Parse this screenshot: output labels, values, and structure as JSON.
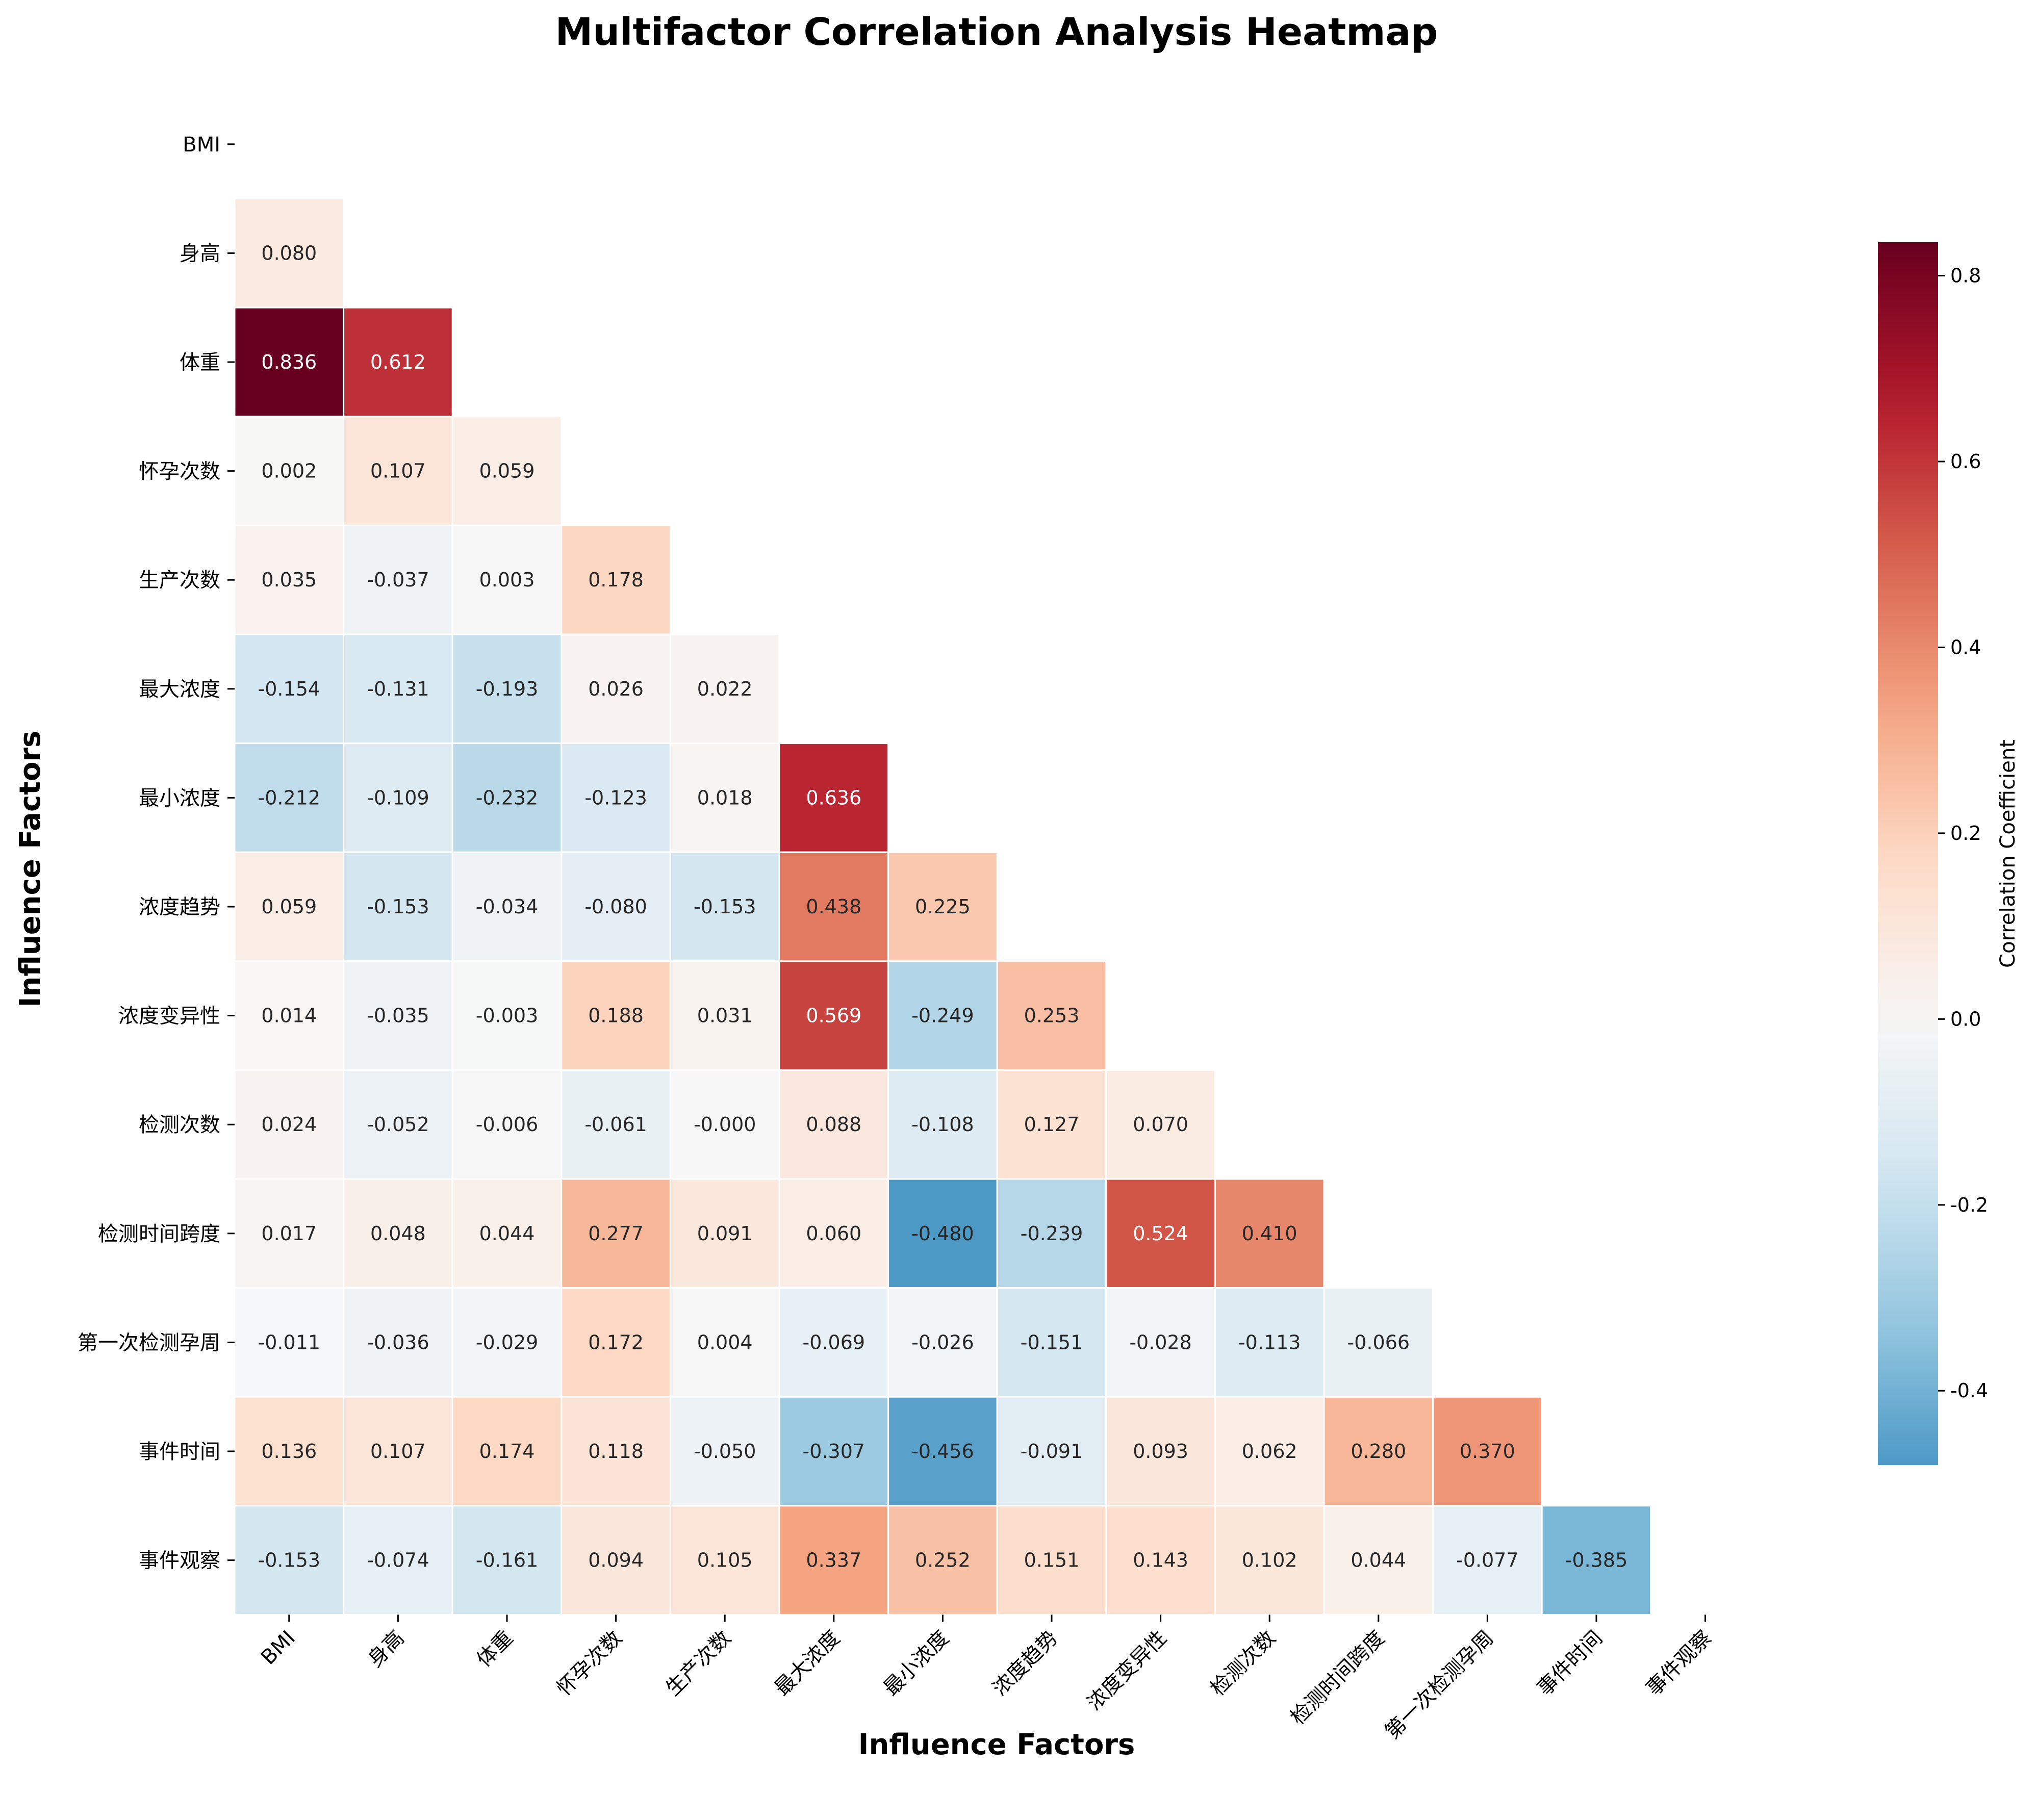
{
  "chart_data": {
    "type": "heatmap",
    "title": "Multifactor Correlation Analysis Heatmap",
    "xlabel": "Influence Factors",
    "ylabel": "Influence Factors",
    "factors": [
      "BMI",
      "身高",
      "体重",
      "怀孕次数",
      "生产次数",
      "最大浓度",
      "最小浓度",
      "浓度趋势",
      "浓度变异性",
      "检测次数",
      "检测时间跨度",
      "第一次检测孕周",
      "事件时间",
      "事件观察"
    ],
    "mask": "upper-triangle-including-diagonal",
    "matrix_lower": [
      [],
      [
        "0.080"
      ],
      [
        "0.836",
        "0.612"
      ],
      [
        "0.002",
        "0.107",
        "0.059"
      ],
      [
        "0.035",
        "-0.037",
        "0.003",
        "0.178"
      ],
      [
        "-0.154",
        "-0.131",
        "-0.193",
        "0.026",
        "0.022"
      ],
      [
        "-0.212",
        "-0.109",
        "-0.232",
        "-0.123",
        "0.018",
        "0.636"
      ],
      [
        "0.059",
        "-0.153",
        "-0.034",
        "-0.080",
        "-0.153",
        "0.438",
        "0.225"
      ],
      [
        "0.014",
        "-0.035",
        "-0.003",
        "0.188",
        "0.031",
        "0.569",
        "-0.249",
        "0.253"
      ],
      [
        "0.024",
        "-0.052",
        "-0.006",
        "-0.061",
        "-0.000",
        "0.088",
        "-0.108",
        "0.127",
        "0.070"
      ],
      [
        "0.017",
        "0.048",
        "0.044",
        "0.277",
        "0.091",
        "0.060",
        "-0.480",
        "-0.239",
        "0.524",
        "0.410"
      ],
      [
        "-0.011",
        "-0.036",
        "-0.029",
        "0.172",
        "0.004",
        "-0.069",
        "-0.026",
        "-0.151",
        "-0.028",
        "-0.113",
        "-0.066"
      ],
      [
        "0.136",
        "0.107",
        "0.174",
        "0.118",
        "-0.050",
        "-0.307",
        "-0.456",
        "-0.091",
        "0.093",
        "0.062",
        "0.280",
        "0.370"
      ],
      [
        "-0.153",
        "-0.074",
        "-0.161",
        "0.094",
        "0.105",
        "0.337",
        "0.252",
        "0.151",
        "0.143",
        "0.102",
        "0.044",
        "-0.077",
        "-0.385"
      ]
    ],
    "colormap": "RdBu_r",
    "vmin": -0.48,
    "vmax": 0.836,
    "colorbar": {
      "label": "Correlation Coefficient",
      "ticks": [
        "-0.4",
        "-0.2",
        "0.0",
        "0.2",
        "0.4",
        "0.6",
        "0.8"
      ]
    }
  }
}
